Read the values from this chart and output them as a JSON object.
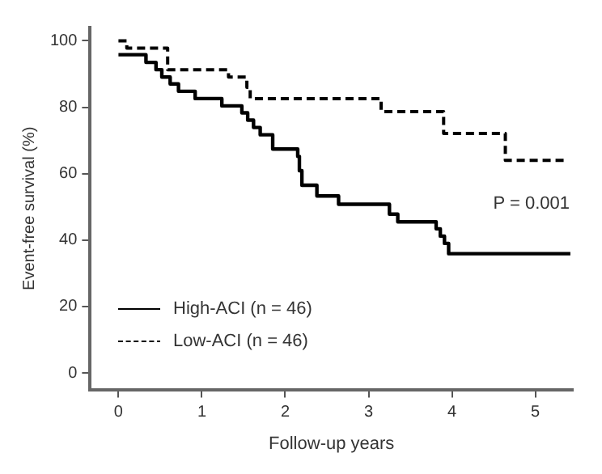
{
  "chart_data": {
    "type": "step",
    "xlabel": "Follow-up years",
    "ylabel": "Event-free survival (%)",
    "series": [
      {
        "name": "High-ACI (n = 46)",
        "color": "#000000",
        "line_style": "solid",
        "x": [
          0,
          0.33,
          0.45,
          0.52,
          0.62,
          0.72,
          0.92,
          1.24,
          1.48,
          1.55,
          1.62,
          1.7,
          1.85,
          2.15,
          2.17,
          2.2,
          2.38,
          2.64,
          3.25,
          3.35,
          3.81,
          3.86,
          3.91,
          3.96,
          5.42
        ],
        "values": [
          95.8,
          93.5,
          91.3,
          89.1,
          87.0,
          84.8,
          82.6,
          80.4,
          78.3,
          76.1,
          73.9,
          71.7,
          67.4,
          65.2,
          60.9,
          56.5,
          53.3,
          50.8,
          47.8,
          45.5,
          43.4,
          41.2,
          39.0,
          35.9,
          35.9
        ]
      },
      {
        "name": "Low-ACI (n = 46)",
        "color": "#000000",
        "line_style": "dashed",
        "x": [
          0,
          0.1,
          0.59,
          1.32,
          1.54,
          1.58,
          3.15,
          3.9,
          4.64,
          5.34
        ],
        "values": [
          100,
          97.8,
          91.3,
          89.1,
          86.0,
          82.6,
          78.7,
          72.1,
          64.0,
          64.0
        ]
      }
    ],
    "annotations": [
      "P = 0.001"
    ],
    "xlim": [
      -0.34,
      5.45
    ],
    "xticks": [
      0,
      1,
      2,
      3,
      4,
      5
    ],
    "ylim": [
      -5,
      104
    ],
    "yticks": [
      0,
      20,
      40,
      60,
      80,
      100
    ],
    "grid": false,
    "legend": "bottom left",
    "marker": "none"
  }
}
